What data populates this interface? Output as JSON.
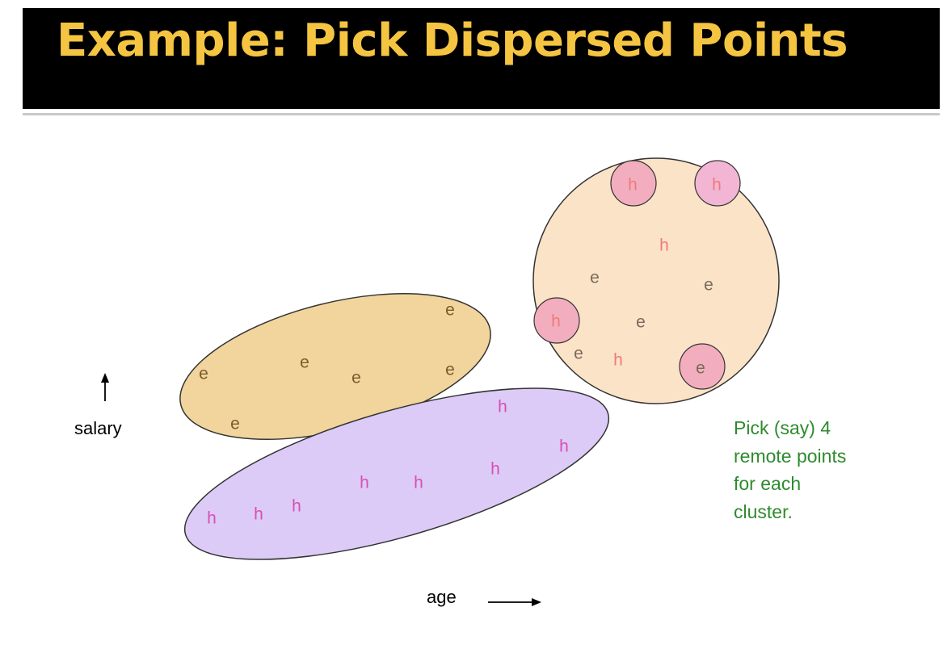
{
  "slide": {
    "title": "Example: Pick Dispersed Points",
    "title_color": "#f5c542",
    "title_bg": "#000000"
  },
  "axes": {
    "y_label": "salary",
    "x_label": "age"
  },
  "note": {
    "lines": [
      "Pick (say) 4",
      "remote points",
      "for each",
      "cluster."
    ],
    "color": "#2e8b2e"
  },
  "clusters": [
    {
      "name": "e-cluster",
      "fill": "#f2d59c",
      "points": [
        {
          "label": "e",
          "color": "#7a5c2e"
        },
        {
          "label": "e",
          "color": "#7a5c2e"
        },
        {
          "label": "e",
          "color": "#7a5c2e"
        },
        {
          "label": "e",
          "color": "#7a5c2e"
        },
        {
          "label": "e",
          "color": "#7a5c2e"
        },
        {
          "label": "e",
          "color": "#7a5c2e"
        }
      ]
    },
    {
      "name": "h-cluster",
      "fill": "#dccbf7",
      "points": [
        {
          "label": "h",
          "color": "#d94fb3"
        },
        {
          "label": "h",
          "color": "#d94fb3"
        },
        {
          "label": "h",
          "color": "#d94fb3"
        },
        {
          "label": "h",
          "color": "#d94fb3"
        },
        {
          "label": "h",
          "color": "#d94fb3"
        },
        {
          "label": "h",
          "color": "#d94fb3"
        },
        {
          "label": "h",
          "color": "#d94fb3"
        },
        {
          "label": "h",
          "color": "#d94fb3"
        }
      ]
    },
    {
      "name": "mixed-cluster",
      "fill": "#fbe3c8",
      "points": [
        {
          "label": "h",
          "color": "#f07a7a"
        },
        {
          "label": "h",
          "color": "#f07a7a"
        },
        {
          "label": "h",
          "color": "#f07a7a"
        },
        {
          "label": "h",
          "color": "#f07a7a"
        },
        {
          "label": "h",
          "color": "#f07a7a"
        },
        {
          "label": "e",
          "color": "#7a6a5a"
        },
        {
          "label": "e",
          "color": "#7a6a5a"
        },
        {
          "label": "e",
          "color": "#7a6a5a"
        },
        {
          "label": "e",
          "color": "#7a6a5a"
        },
        {
          "label": "e",
          "color": "#7a6a5a"
        }
      ],
      "remote_marker_fill": "#f2aebf"
    }
  ]
}
